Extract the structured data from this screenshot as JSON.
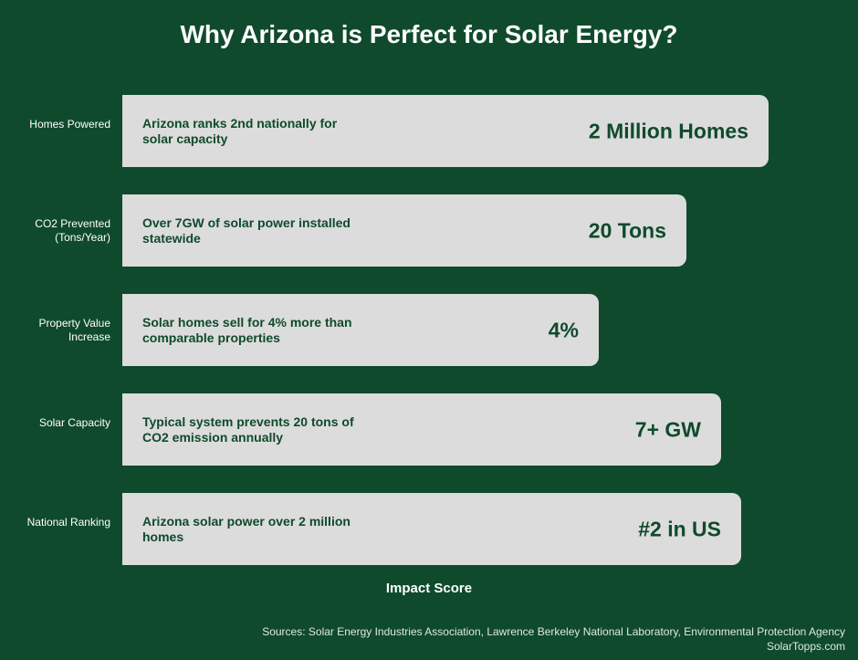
{
  "chart_data": {
    "type": "bar",
    "orientation": "horizontal",
    "title": "Why Arizona is Perfect for Solar Energy?",
    "xlabel": "Impact Score",
    "categories": [
      "Homes Powered",
      "CO2 Prevented (Tons/Year)",
      "Property Value Increase",
      "Solar Capacity",
      "National Ranking"
    ],
    "values": [
      95,
      83,
      70,
      88,
      91
    ],
    "xlim": [
      0,
      100
    ],
    "value_labels": [
      "2 Million Homes",
      "20 Tons",
      "4%",
      "7+ GW",
      "#2 in US"
    ],
    "descriptions": [
      "Arizona ranks 2nd nationally for solar capacity",
      "Over 7GW of solar power installed statewide",
      "Solar homes sell for 4% more than comparable properties",
      "Typical system prevents 20 tons of CO2 emission annually",
      "Arizona solar power over 2 million homes"
    ],
    "grid": false,
    "legend": "none",
    "colors": {
      "background": "#0f4a2c",
      "bar": "#dcdcdc",
      "bar_text": "#0f4a2c",
      "text": "#ffffff"
    }
  },
  "footer": {
    "sources": "Sources: Solar Energy Industries Association, Lawrence Berkeley National Laboratory, Environmental Protection Agency",
    "site": "SolarTopps.com"
  }
}
